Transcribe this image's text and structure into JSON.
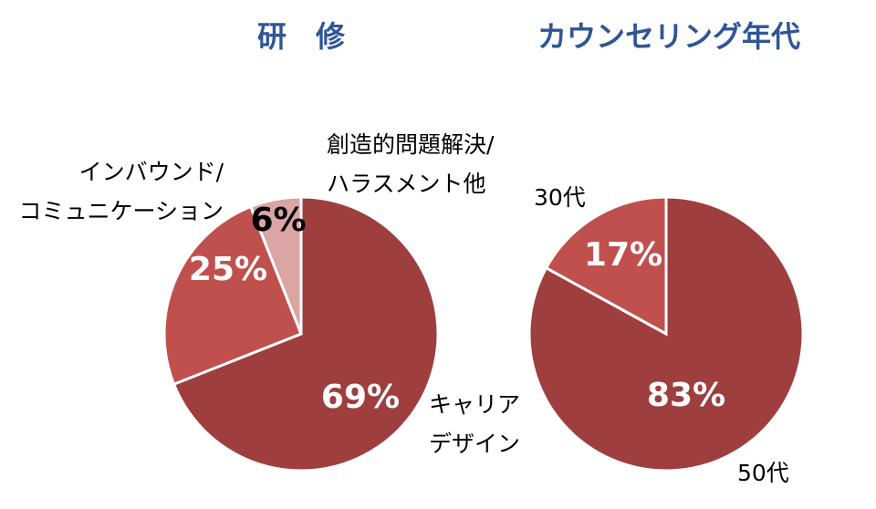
{
  "chart_data": [
    {
      "type": "pie",
      "title": "研　修",
      "categories": [
        [
          "キャリア",
          "デザイン"
        ],
        [
          "インバウンド/",
          "コミュニケーション"
        ],
        [
          "創造的問題解決/",
          "ハラスメント他"
        ]
      ],
      "values": [
        69,
        25,
        6
      ],
      "value_labels": [
        "69%",
        "25%",
        "6%"
      ],
      "colors": [
        "#9e3e3e",
        "#c0504d",
        "#dba5a5"
      ]
    },
    {
      "type": "pie",
      "title": "カウンセリング年代",
      "categories": [
        [
          "50代"
        ],
        [
          "30代"
        ]
      ],
      "values": [
        83,
        17
      ],
      "value_labels": [
        "83%",
        "17%"
      ],
      "colors": [
        "#9e3e3e",
        "#c0504d"
      ]
    }
  ]
}
